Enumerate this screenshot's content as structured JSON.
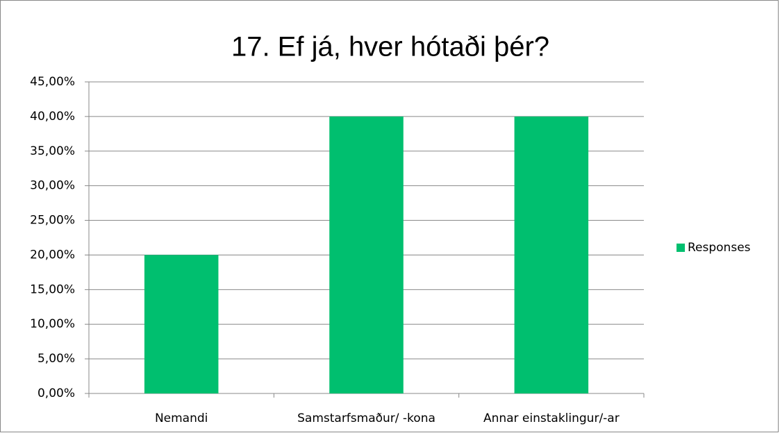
{
  "chart_data": {
    "type": "bar",
    "title": "17. Ef já, hver hótaði þér?",
    "categories": [
      "Nemandi",
      "Samstarfsmaður/ -kona",
      "Annar einstaklingur/-ar"
    ],
    "series": [
      {
        "name": "Responses",
        "color": "#00bf6f",
        "values": [
          20,
          40,
          40
        ]
      }
    ],
    "ylim": [
      0,
      45
    ],
    "yticks": [
      {
        "value": 0,
        "label": "0,00%"
      },
      {
        "value": 5,
        "label": "5,00%"
      },
      {
        "value": 10,
        "label": "10,00%"
      },
      {
        "value": 15,
        "label": "15,00%"
      },
      {
        "value": 20,
        "label": "20,00%"
      },
      {
        "value": 25,
        "label": "25,00%"
      },
      {
        "value": 30,
        "label": "30,00%"
      },
      {
        "value": 35,
        "label": "35,00%"
      },
      {
        "value": 40,
        "label": "40,00%"
      },
      {
        "value": 45,
        "label": "45,00%"
      }
    ],
    "grid": true,
    "legend": "right"
  }
}
